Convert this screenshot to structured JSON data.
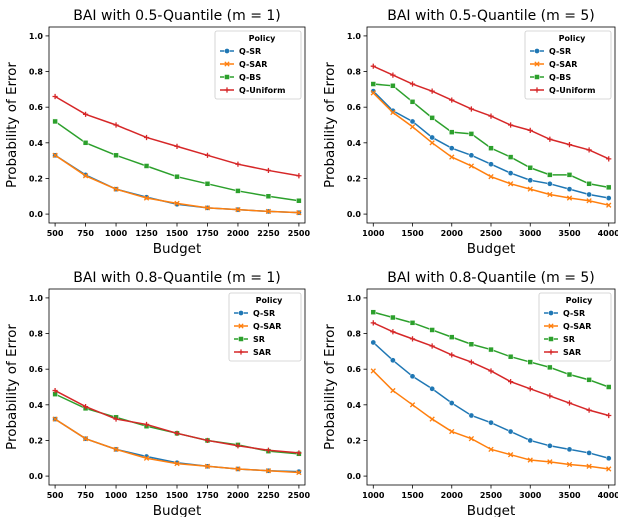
{
  "colors": {
    "blue": "#1f77b4",
    "orange": "#ff7f0e",
    "green": "#2ca02c",
    "red": "#d62728"
  },
  "chart_data": [
    {
      "type": "line",
      "title": "BAI with 0.5-Quantile (m = 1)",
      "xlabel": "Budget",
      "ylabel": "Probability of Error",
      "xlim": [
        450,
        2550
      ],
      "ylim": [
        -0.05,
        1.05
      ],
      "xticks": [
        500,
        750,
        1000,
        1250,
        1500,
        1750,
        2000,
        2250,
        2500
      ],
      "yticks": [
        0.0,
        0.2,
        0.4,
        0.6,
        0.8,
        1.0
      ],
      "ytick_labels": [
        "0.0",
        "0.2",
        "0.4",
        "0.6",
        "0.8",
        "1.0"
      ],
      "legend_title": "Policy",
      "legend_position": "top-right",
      "x": [
        500,
        750,
        1000,
        1250,
        1500,
        1750,
        2000,
        2250,
        2500
      ],
      "series": [
        {
          "name": "Q-SR",
          "color": "blue",
          "marker": "circle",
          "values": [
            0.33,
            0.22,
            0.14,
            0.095,
            0.055,
            0.035,
            0.025,
            0.015,
            0.008
          ]
        },
        {
          "name": "Q-SAR",
          "color": "orange",
          "marker": "x",
          "values": [
            0.33,
            0.215,
            0.14,
            0.09,
            0.06,
            0.035,
            0.025,
            0.015,
            0.008
          ]
        },
        {
          "name": "Q-BS",
          "color": "green",
          "marker": "square",
          "values": [
            0.52,
            0.4,
            0.33,
            0.27,
            0.21,
            0.17,
            0.13,
            0.1,
            0.075
          ]
        },
        {
          "name": "Q-Uniform",
          "color": "red",
          "marker": "plus",
          "values": [
            0.66,
            0.56,
            0.5,
            0.43,
            0.38,
            0.33,
            0.28,
            0.245,
            0.215
          ]
        }
      ]
    },
    {
      "type": "line",
      "title": "BAI with 0.5-Quantile (m = 5)",
      "xlabel": "Budget",
      "ylabel": "Probability of Error",
      "xlim": [
        920,
        4080
      ],
      "ylim": [
        -0.05,
        1.05
      ],
      "xticks": [
        1000,
        1500,
        2000,
        2500,
        3000,
        3500,
        4000
      ],
      "yticks": [
        0.0,
        0.2,
        0.4,
        0.6,
        0.8,
        1.0
      ],
      "ytick_labels": [
        "0.0",
        "0.2",
        "0.4",
        "0.6",
        "0.8",
        "1.0"
      ],
      "legend_title": "Policy",
      "legend_position": "top-right",
      "x": [
        1000,
        1250,
        1500,
        1750,
        2000,
        2250,
        2500,
        2750,
        3000,
        3250,
        3500,
        3750,
        4000
      ],
      "series": [
        {
          "name": "Q-SR",
          "color": "blue",
          "marker": "circle",
          "values": [
            0.69,
            0.58,
            0.52,
            0.43,
            0.37,
            0.33,
            0.28,
            0.23,
            0.19,
            0.17,
            0.14,
            0.11,
            0.09
          ]
        },
        {
          "name": "Q-SAR",
          "color": "orange",
          "marker": "x",
          "values": [
            0.68,
            0.57,
            0.49,
            0.4,
            0.32,
            0.27,
            0.21,
            0.17,
            0.14,
            0.11,
            0.09,
            0.075,
            0.05
          ]
        },
        {
          "name": "Q-BS",
          "color": "green",
          "marker": "square",
          "values": [
            0.73,
            0.72,
            0.63,
            0.54,
            0.46,
            0.45,
            0.37,
            0.32,
            0.26,
            0.22,
            0.22,
            0.17,
            0.15
          ]
        },
        {
          "name": "Q-Uniform",
          "color": "red",
          "marker": "plus",
          "values": [
            0.83,
            0.78,
            0.73,
            0.69,
            0.64,
            0.59,
            0.55,
            0.5,
            0.47,
            0.42,
            0.39,
            0.36,
            0.31
          ]
        }
      ]
    },
    {
      "type": "line",
      "title": "BAI with 0.8-Quantile (m = 1)",
      "xlabel": "Budget",
      "ylabel": "Probability of Error",
      "xlim": [
        450,
        2550
      ],
      "ylim": [
        -0.05,
        1.05
      ],
      "xticks": [
        500,
        750,
        1000,
        1250,
        1500,
        1750,
        2000,
        2250,
        2500
      ],
      "yticks": [
        0.0,
        0.2,
        0.4,
        0.6,
        0.8,
        1.0
      ],
      "ytick_labels": [
        "0.0",
        "0.2",
        "0.4",
        "0.6",
        "0.8",
        "1.0"
      ],
      "legend_title": "Policy",
      "legend_position": "top-right",
      "x": [
        500,
        750,
        1000,
        1250,
        1500,
        1750,
        2000,
        2250,
        2500
      ],
      "series": [
        {
          "name": "Q-SR",
          "color": "blue",
          "marker": "circle",
          "values": [
            0.32,
            0.21,
            0.15,
            0.11,
            0.075,
            0.055,
            0.04,
            0.03,
            0.025
          ]
        },
        {
          "name": "Q-SAR",
          "color": "orange",
          "marker": "x",
          "values": [
            0.32,
            0.21,
            0.15,
            0.1,
            0.07,
            0.055,
            0.04,
            0.03,
            0.02
          ]
        },
        {
          "name": "SR",
          "color": "green",
          "marker": "square",
          "values": [
            0.46,
            0.38,
            0.33,
            0.28,
            0.24,
            0.2,
            0.175,
            0.14,
            0.125
          ]
        },
        {
          "name": "SAR",
          "color": "red",
          "marker": "plus",
          "values": [
            0.48,
            0.39,
            0.32,
            0.29,
            0.24,
            0.2,
            0.17,
            0.145,
            0.13
          ]
        }
      ]
    },
    {
      "type": "line",
      "title": "BAI with 0.8-Quantile (m = 5)",
      "xlabel": "Budget",
      "ylabel": "Probability of Error",
      "xlim": [
        920,
        4080
      ],
      "ylim": [
        -0.05,
        1.05
      ],
      "xticks": [
        1000,
        1500,
        2000,
        2500,
        3000,
        3500,
        4000
      ],
      "yticks": [
        0.0,
        0.2,
        0.4,
        0.6,
        0.8,
        1.0
      ],
      "ytick_labels": [
        "0.0",
        "0.2",
        "0.4",
        "0.6",
        "0.8",
        "1.0"
      ],
      "legend_title": "Policy",
      "legend_position": "top-right",
      "x": [
        1000,
        1250,
        1500,
        1750,
        2000,
        2250,
        2500,
        2750,
        3000,
        3250,
        3500,
        3750,
        4000
      ],
      "series": [
        {
          "name": "Q-SR",
          "color": "blue",
          "marker": "circle",
          "values": [
            0.75,
            0.65,
            0.56,
            0.49,
            0.41,
            0.34,
            0.3,
            0.25,
            0.2,
            0.17,
            0.15,
            0.13,
            0.1
          ]
        },
        {
          "name": "Q-SAR",
          "color": "orange",
          "marker": "x",
          "values": [
            0.59,
            0.48,
            0.4,
            0.32,
            0.25,
            0.21,
            0.15,
            0.12,
            0.09,
            0.08,
            0.065,
            0.055,
            0.04
          ]
        },
        {
          "name": "SR",
          "color": "green",
          "marker": "square",
          "values": [
            0.92,
            0.89,
            0.86,
            0.82,
            0.78,
            0.74,
            0.71,
            0.67,
            0.64,
            0.61,
            0.57,
            0.54,
            0.5
          ]
        },
        {
          "name": "SAR",
          "color": "red",
          "marker": "plus",
          "values": [
            0.86,
            0.81,
            0.77,
            0.73,
            0.68,
            0.64,
            0.59,
            0.53,
            0.49,
            0.45,
            0.41,
            0.37,
            0.34
          ]
        }
      ]
    }
  ]
}
